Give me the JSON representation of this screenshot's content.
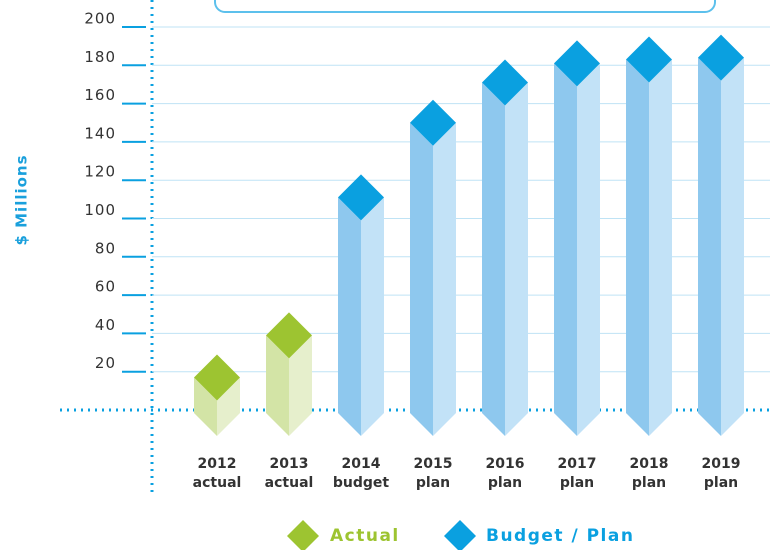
{
  "chart_data": {
    "type": "bar",
    "y_label": "$ Millions",
    "categories": [
      [
        "2012",
        "actual"
      ],
      [
        "2013",
        "actual"
      ],
      [
        "2014",
        "budget"
      ],
      [
        "2015",
        "plan"
      ],
      [
        "2016",
        "plan"
      ],
      [
        "2017",
        "plan"
      ],
      [
        "2018",
        "plan"
      ],
      [
        "2019",
        "plan"
      ]
    ],
    "series": [
      {
        "name": "Actual",
        "color": "#9dc431",
        "values": [
          17,
          39,
          null,
          null,
          null,
          null,
          null,
          null
        ]
      },
      {
        "name": "Budget / Plan",
        "color": "#0aa0e0",
        "values": [
          null,
          null,
          111,
          150,
          171,
          181,
          183,
          184
        ]
      }
    ],
    "ylim": [
      0,
      210
    ],
    "yticks": [
      20,
      40,
      60,
      80,
      100,
      120,
      140,
      160,
      180,
      200
    ],
    "grid": true
  }
}
